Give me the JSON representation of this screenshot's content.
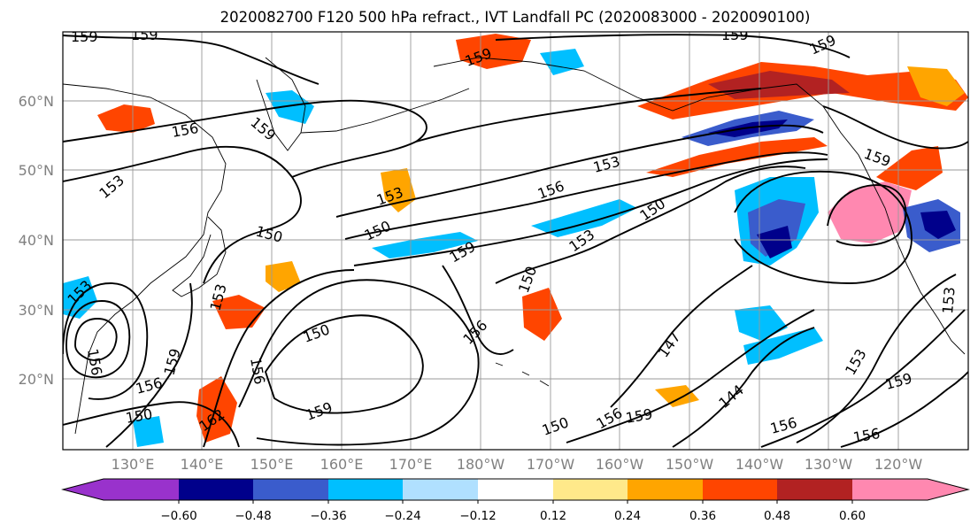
{
  "title": "2020082700 F120 500 hPa refract., IVT Landfall PC (2020083000 - 2020090100)",
  "lat_labels": [
    "60°N",
    "50°N",
    "40°N",
    "30°N",
    "20°N"
  ],
  "lon_labels": [
    "130°E",
    "140°E",
    "150°E",
    "160°E",
    "170°E",
    "180°W",
    "170°W",
    "160°W",
    "150°W",
    "140°W",
    "130°W",
    "120°W"
  ],
  "colorbar": {
    "colors": [
      "#9932cc",
      "#00008b",
      "#3a5ccc",
      "#00bfff",
      "#b0e0ff",
      "#ffffff",
      "#ffe98a",
      "#ffa500",
      "#ff4500",
      "#b22222",
      "#ff88b0"
    ],
    "tick_labels": [
      "−0.60",
      "−0.48",
      "−0.36",
      "−0.24",
      "−0.12",
      "0.12",
      "0.24",
      "0.36",
      "0.48",
      "0.60"
    ]
  },
  "contour_labels": [
    "159",
    "159",
    "159",
    "159",
    "156",
    "159",
    "153",
    "150",
    "159",
    "150",
    "156",
    "153",
    "150",
    "153",
    "150",
    "159",
    "153",
    "150",
    "156",
    "159",
    "150",
    "156",
    "147",
    "144",
    "153",
    "159",
    "156",
    "159",
    "150",
    "156",
    "159",
    "153",
    "162",
    "156",
    "153",
    "156",
    "156",
    "159",
    "153"
  ]
}
